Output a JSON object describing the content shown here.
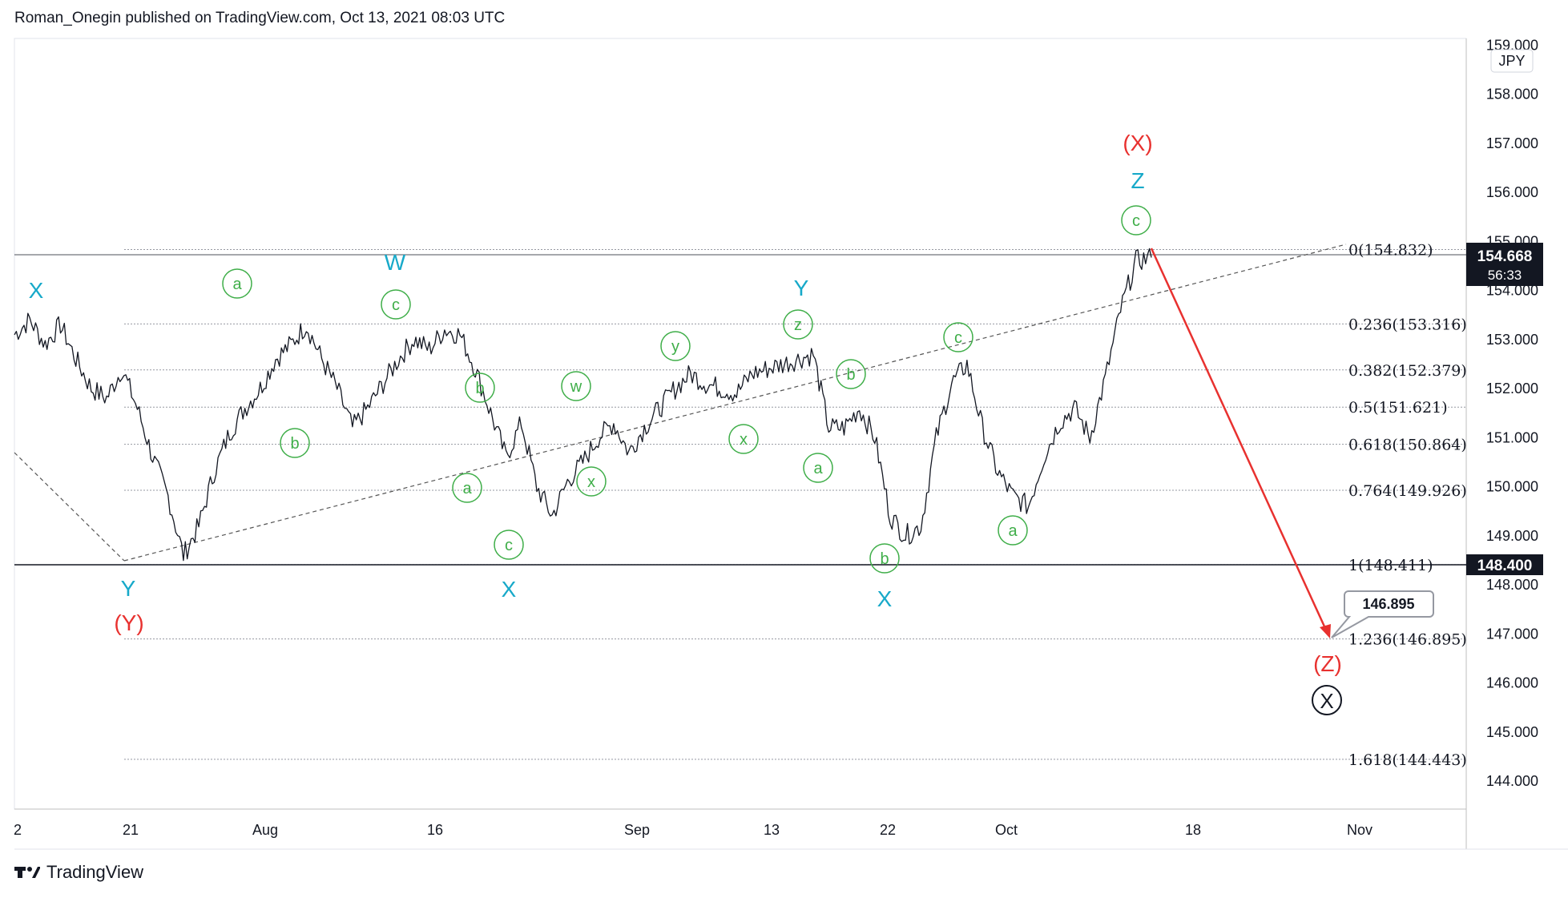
{
  "header": {
    "text": "Roman_Onegin published on TradingView.com, Oct 13, 2021 08:03 UTC"
  },
  "footer": {
    "brand": "TradingView"
  },
  "colors": {
    "price_line": "#131722",
    "fib_line": "#9598a1",
    "channel": "#555555",
    "wave_green": "#3fae49",
    "wave_cyan": "#17a9c9",
    "wave_red": "#e8312f",
    "projection_arrow": "#e8312f"
  },
  "chart_data": {
    "type": "line",
    "title": "",
    "currency": "JPY",
    "ylim": [
      143.4,
      159.2
    ],
    "y_ticks": [
      "144.000",
      "145.000",
      "146.000",
      "147.000",
      "148.000",
      "149.000",
      "150.000",
      "151.000",
      "152.000",
      "153.000",
      "154.000",
      "155.000",
      "156.000",
      "157.000",
      "158.000",
      "159.000"
    ],
    "x_ticks": [
      "2",
      "21",
      "Aug",
      "16",
      "Sep",
      "13",
      "22",
      "Oct",
      "18",
      "Nov"
    ],
    "last_price": {
      "label": "154.668",
      "countdown": "56:33",
      "value": 154.668
    },
    "level_marker": {
      "label": "148.400",
      "value": 148.4
    },
    "target_callout": {
      "label": "146.895",
      "value": 146.895
    },
    "fib_levels": [
      {
        "ratio": "0",
        "value": 154.832,
        "label": "0(154.832)"
      },
      {
        "ratio": "0.236",
        "value": 153.316,
        "label": "0.236(153.316)"
      },
      {
        "ratio": "0.382",
        "value": 152.379,
        "label": "0.382(152.379)"
      },
      {
        "ratio": "0.5",
        "value": 151.621,
        "label": "0.5(151.621)"
      },
      {
        "ratio": "0.618",
        "value": 150.864,
        "label": "0.618(150.864)"
      },
      {
        "ratio": "0.764",
        "value": 149.926,
        "label": "0.764(149.926)"
      },
      {
        "ratio": "1",
        "value": 148.411,
        "label": "1(148.411)"
      },
      {
        "ratio": "1.236",
        "value": 146.895,
        "label": "1.236(146.895)"
      },
      {
        "ratio": "1.618",
        "value": 144.443,
        "label": "1.618(144.443)"
      }
    ],
    "price_path": [
      [
        "Jul 02",
        153.1
      ],
      [
        "Jul 05",
        153.4
      ],
      [
        "Jul 06",
        152.9
      ],
      [
        "Jul 07",
        153.3
      ],
      [
        "Jul 08",
        152.6
      ],
      [
        "Jul 09",
        152.0
      ],
      [
        "Jul 12",
        151.8
      ],
      [
        "Jul 13",
        152.4
      ],
      [
        "Jul 14",
        151.6
      ],
      [
        "Jul 15",
        150.6
      ],
      [
        "Jul 16",
        149.8
      ],
      [
        "Jul 19",
        148.6
      ],
      [
        "Jul 20",
        149.2
      ],
      [
        "Jul 21",
        150.3
      ],
      [
        "Jul 22",
        151.1
      ],
      [
        "Jul 23",
        151.6
      ],
      [
        "Jul 26",
        152.0
      ],
      [
        "Jul 27",
        152.6
      ],
      [
        "Jul 28",
        152.9
      ],
      [
        "Jul 29",
        153.3
      ],
      [
        "Jul 30",
        152.6
      ],
      [
        "Aug 02",
        152.0
      ],
      [
        "Aug 03",
        151.2
      ],
      [
        "Aug 04",
        151.6
      ],
      [
        "Aug 05",
        152.1
      ],
      [
        "Aug 06",
        152.6
      ],
      [
        "Aug 09",
        153.0
      ],
      [
        "Aug 10",
        152.8
      ],
      [
        "Aug 11",
        153.2
      ],
      [
        "Aug 12",
        153.1
      ],
      [
        "Aug 13",
        152.4
      ],
      [
        "Aug 16",
        151.5
      ],
      [
        "Aug 17",
        150.6
      ],
      [
        "Aug 18",
        151.3
      ],
      [
        "Aug 19",
        150.0
      ],
      [
        "Aug 20",
        149.4
      ],
      [
        "Aug 23",
        150.1
      ],
      [
        "Aug 24",
        150.5
      ],
      [
        "Aug 25",
        151.0
      ],
      [
        "Aug 26",
        151.3
      ],
      [
        "Aug 27",
        150.7
      ],
      [
        "Aug 30",
        151.2
      ],
      [
        "Aug 31",
        151.6
      ],
      [
        "Sep 01",
        152.0
      ],
      [
        "Sep 02",
        152.3
      ],
      [
        "Sep 03",
        152.1
      ],
      [
        "Sep 06",
        152.0
      ],
      [
        "Sep 07",
        151.9
      ],
      [
        "Sep 08",
        152.3
      ],
      [
        "Sep 09",
        152.4
      ],
      [
        "Sep 10",
        152.5
      ],
      [
        "Sep 13",
        152.6
      ],
      [
        "Sep 14",
        152.7
      ],
      [
        "Sep 15",
        151.2
      ],
      [
        "Sep 16",
        151.2
      ],
      [
        "Sep 17",
        151.6
      ],
      [
        "Sep 20",
        151.0
      ],
      [
        "Sep 21",
        149.4
      ],
      [
        "Sep 22",
        149.0
      ],
      [
        "Sep 23",
        149.2
      ],
      [
        "Sep 24",
        151.0
      ],
      [
        "Sep 27",
        152.1
      ],
      [
        "Sep 28",
        152.5
      ],
      [
        "Sep 29",
        151.2
      ],
      [
        "Sep 30",
        150.3
      ],
      [
        "Oct 01",
        149.8
      ],
      [
        "Oct 04",
        149.6
      ],
      [
        "Oct 05",
        150.6
      ],
      [
        "Oct 06",
        151.3
      ],
      [
        "Oct 07",
        151.6
      ],
      [
        "Oct 08",
        151.0
      ],
      [
        "Oct 11",
        152.2
      ],
      [
        "Oct 12",
        153.6
      ],
      [
        "Oct 13",
        154.6
      ],
      [
        "Oct 14",
        154.67
      ]
    ],
    "wave_labels_cyan": [
      "X",
      "W",
      "Y",
      "Z",
      "Y",
      "X",
      "X"
    ],
    "wave_labels_red": [
      "(X)",
      "(Y)",
      "(Z)"
    ],
    "wave_labels_green": [
      "a",
      "b",
      "c",
      "b",
      "a",
      "c",
      "w",
      "x",
      "y",
      "z",
      "x",
      "b",
      "a",
      "c",
      "a",
      "b",
      "c"
    ],
    "circled_black": "X"
  }
}
